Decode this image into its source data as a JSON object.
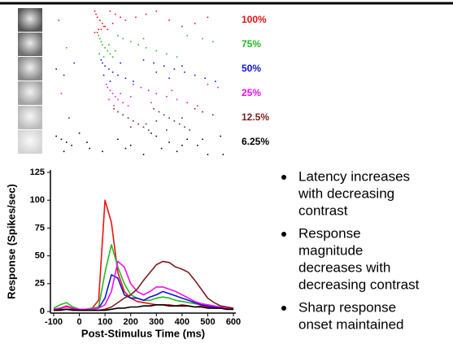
{
  "chart_data": [
    {
      "type": "raster",
      "xlim": [
        -100,
        600
      ],
      "ylim": [
        0,
        48
      ],
      "series": [
        {
          "name": "100%",
          "color": "#ee1111",
          "x": [
            -80,
            60,
            65,
            70,
            80,
            90,
            100,
            110,
            120,
            140,
            160,
            60,
            75,
            95,
            130,
            180,
            220,
            260,
            300,
            350,
            400,
            450,
            500,
            70,
            85
          ],
          "y": [
            44,
            47,
            46,
            45,
            44,
            43,
            42,
            41,
            47,
            46,
            45,
            40,
            41,
            42,
            43,
            44,
            45,
            46,
            47,
            44,
            42,
            43,
            45,
            40,
            41
          ]
        },
        {
          "name": "75%",
          "color": "#22bb22",
          "x": [
            -50,
            75,
            80,
            85,
            90,
            100,
            110,
            120,
            130,
            150,
            170,
            200,
            230,
            260,
            300,
            340,
            380,
            420,
            480,
            520,
            78,
            95,
            115,
            140,
            250
          ],
          "y": [
            35,
            39,
            38,
            37,
            36,
            35,
            34,
            33,
            32,
            39,
            38,
            37,
            36,
            35,
            34,
            33,
            32,
            39,
            38,
            37,
            33,
            32,
            36,
            34,
            38
          ]
        },
        {
          "name": "50%",
          "color": "#1111dd",
          "x": [
            -90,
            -60,
            -20,
            85,
            90,
            100,
            115,
            130,
            150,
            180,
            210,
            250,
            290,
            330,
            370,
            410,
            450,
            490,
            530,
            95,
            120,
            160,
            300,
            350,
            400
          ],
          "y": [
            28,
            26,
            30,
            31,
            30,
            29,
            28,
            27,
            26,
            25,
            24,
            31,
            30,
            29,
            28,
            27,
            26,
            25,
            24,
            26,
            24,
            30,
            27,
            25,
            29
          ]
        },
        {
          "name": "25%",
          "color": "#ee11ee",
          "x": [
            -70,
            105,
            110,
            120,
            130,
            140,
            150,
            170,
            190,
            210,
            240,
            270,
            300,
            340,
            380,
            420,
            460,
            500,
            540,
            115,
            135,
            160,
            200,
            280,
            360
          ],
          "y": [
            20,
            23,
            22,
            21,
            20,
            19,
            18,
            17,
            16,
            23,
            22,
            21,
            20,
            19,
            18,
            17,
            16,
            23,
            22,
            18,
            16,
            20,
            19,
            17,
            21
          ]
        },
        {
          "name": "12.5%",
          "color": "#7a1f1f",
          "x": [
            -40,
            135,
            150,
            170,
            190,
            210,
            230,
            250,
            270,
            290,
            310,
            330,
            350,
            370,
            390,
            410,
            430,
            450,
            480,
            520,
            200,
            260,
            300,
            340,
            400
          ],
          "y": [
            12,
            15,
            14,
            13,
            12,
            11,
            10,
            9,
            8,
            15,
            14,
            13,
            12,
            11,
            10,
            9,
            8,
            15,
            14,
            13,
            9,
            10,
            11,
            8,
            12
          ]
        },
        {
          "name": "6.25%",
          "color": "#000000",
          "x": [
            -90,
            -70,
            -50,
            -30,
            0,
            40,
            90,
            150,
            200,
            250,
            300,
            320,
            350,
            380,
            420,
            460,
            500,
            550,
            -60,
            30,
            180,
            280,
            400,
            480,
            560
          ],
          "y": [
            6,
            5,
            4,
            3,
            7,
            2,
            1,
            5,
            3,
            0,
            6,
            2,
            4,
            1,
            5,
            3,
            0,
            6,
            1,
            4,
            2,
            7,
            3,
            5,
            0
          ]
        }
      ]
    },
    {
      "type": "line",
      "x_label": "Post-Stimulus Time (ms)",
      "y_label": "Response (Spikes/sec)",
      "x": [
        -100,
        -75,
        -50,
        -25,
        0,
        25,
        50,
        75,
        100,
        125,
        150,
        175,
        200,
        225,
        250,
        275,
        300,
        325,
        350,
        375,
        400,
        425,
        450,
        475,
        500,
        525,
        550,
        575,
        600
      ],
      "xlim": [
        -100,
        600
      ],
      "xticks": [
        -100,
        0,
        100,
        200,
        300,
        400,
        500,
        600
      ],
      "ylim": [
        0,
        125
      ],
      "yticks": [
        0,
        25,
        50,
        75,
        100,
        125
      ],
      "series": [
        {
          "color": "#ee1111",
          "values": [
            2,
            3,
            5,
            3,
            2,
            2,
            3,
            10,
            100,
            80,
            35,
            18,
            12,
            9,
            8,
            7,
            6,
            6,
            6,
            5,
            6,
            5,
            4,
            5,
            4,
            3,
            3,
            3,
            2
          ]
        },
        {
          "color": "#22bb22",
          "values": [
            3,
            6,
            8,
            4,
            2,
            2,
            3,
            4,
            35,
            60,
            40,
            25,
            15,
            12,
            10,
            10,
            12,
            13,
            12,
            10,
            9,
            8,
            7,
            6,
            5,
            4,
            4,
            3,
            2
          ]
        },
        {
          "color": "#1111dd",
          "values": [
            1,
            2,
            2,
            2,
            1,
            1,
            2,
            3,
            12,
            33,
            30,
            15,
            12,
            12,
            10,
            13,
            15,
            18,
            16,
            14,
            12,
            10,
            8,
            6,
            5,
            4,
            3,
            2,
            2
          ]
        },
        {
          "color": "#ee11ee",
          "values": [
            2,
            3,
            4,
            3,
            2,
            2,
            2,
            3,
            6,
            18,
            45,
            40,
            25,
            18,
            15,
            18,
            22,
            22,
            20,
            18,
            15,
            12,
            9,
            7,
            6,
            5,
            4,
            3,
            2
          ]
        },
        {
          "color": "#7a1f1f",
          "values": [
            1,
            2,
            2,
            2,
            1,
            1,
            1,
            1,
            2,
            4,
            8,
            12,
            15,
            20,
            28,
            35,
            42,
            45,
            44,
            40,
            38,
            35,
            28,
            20,
            12,
            8,
            5,
            4,
            3
          ]
        },
        {
          "color": "#000000",
          "values": [
            1,
            1,
            2,
            1,
            1,
            1,
            1,
            1,
            1,
            2,
            3,
            3,
            4,
            4,
            5,
            5,
            6,
            6,
            5,
            5,
            5,
            5,
            4,
            4,
            3,
            3,
            3,
            2,
            2
          ]
        }
      ]
    }
  ],
  "bullets": [
    [
      "Latency increases",
      "with decreasing",
      "contrast"
    ],
    [
      "Response",
      "magnitude",
      "decreases with",
      "decreasing contrast"
    ],
    [
      "Sharp response",
      "onset maintained"
    ]
  ]
}
